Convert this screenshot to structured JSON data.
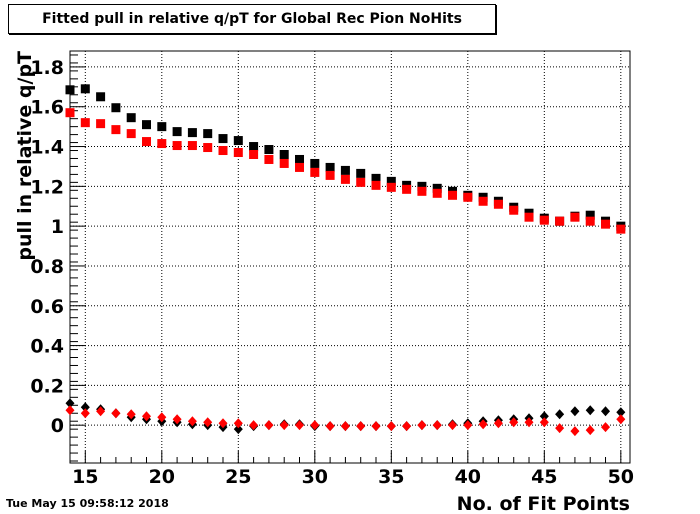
{
  "title": "Fitted pull in relative q/pT for Global Rec Pion NoHits",
  "timestamp": "Tue May 15 09:58:12 2018",
  "chart_data": {
    "type": "scatter",
    "title": "Fitted pull in relative q/pT for Global Rec Pion NoHits",
    "xlabel": "No. of Fit Points",
    "ylabel": "pull in relative q/pT",
    "xlim": [
      14,
      50.6
    ],
    "ylim": [
      -0.19,
      1.88
    ],
    "xticks": [
      "15",
      "20",
      "25",
      "30",
      "35",
      "40",
      "45",
      "50"
    ],
    "yticks": [
      "0",
      "0.2",
      "0.4",
      "0.6",
      "0.8",
      "1",
      "1.2",
      "1.4",
      "1.6",
      "1.8"
    ],
    "grid": true,
    "x": [
      14,
      15,
      16,
      17,
      18,
      19,
      20,
      21,
      22,
      23,
      24,
      25,
      26,
      27,
      28,
      29,
      30,
      31,
      32,
      33,
      34,
      35,
      36,
      37,
      38,
      39,
      40,
      41,
      42,
      43,
      44,
      45,
      46,
      47,
      48,
      49,
      50
    ],
    "series": [
      {
        "marker": "square",
        "color": "#000000",
        "values": [
          1.685,
          1.69,
          1.65,
          1.595,
          1.545,
          1.51,
          1.5,
          1.475,
          1.47,
          1.465,
          1.44,
          1.43,
          1.4,
          1.385,
          1.36,
          1.335,
          1.315,
          1.295,
          1.28,
          1.265,
          1.24,
          1.225,
          1.205,
          1.2,
          1.19,
          1.175,
          1.155,
          1.145,
          1.125,
          1.095,
          1.065,
          1.04,
          1.025,
          1.05,
          1.055,
          1.025,
          1.0
        ]
      },
      {
        "marker": "square",
        "color": "#ff0000",
        "values": [
          1.57,
          1.52,
          1.515,
          1.485,
          1.465,
          1.425,
          1.415,
          1.405,
          1.405,
          1.395,
          1.38,
          1.37,
          1.36,
          1.335,
          1.315,
          1.295,
          1.27,
          1.255,
          1.235,
          1.22,
          1.205,
          1.195,
          1.185,
          1.175,
          1.165,
          1.155,
          1.145,
          1.125,
          1.11,
          1.08,
          1.045,
          1.03,
          1.025,
          1.045,
          1.025,
          1.01,
          0.985
        ]
      },
      {
        "marker": "diamond",
        "color": "#000000",
        "values": [
          0.11,
          0.09,
          0.08,
          0.06,
          0.04,
          0.03,
          0.02,
          0.015,
          0.005,
          0.0,
          -0.01,
          -0.02,
          -0.005,
          0.0,
          0.005,
          0.005,
          -0.005,
          -0.005,
          -0.005,
          -0.005,
          -0.005,
          -0.005,
          -0.005,
          0.0,
          0.0,
          0.005,
          0.01,
          0.02,
          0.025,
          0.03,
          0.035,
          0.045,
          0.055,
          0.07,
          0.075,
          0.07,
          0.065
        ]
      },
      {
        "marker": "diamond",
        "color": "#ff0000",
        "values": [
          0.075,
          0.06,
          0.07,
          0.06,
          0.055,
          0.045,
          0.04,
          0.03,
          0.02,
          0.015,
          0.01,
          0.01,
          0.0,
          0.0,
          0.0,
          0.0,
          0.0,
          -0.005,
          -0.005,
          -0.005,
          -0.005,
          -0.005,
          -0.005,
          0.0,
          0.0,
          0.0,
          0.0,
          0.005,
          0.01,
          0.015,
          0.015,
          0.015,
          -0.015,
          -0.03,
          -0.025,
          -0.01,
          0.03
        ]
      }
    ]
  }
}
